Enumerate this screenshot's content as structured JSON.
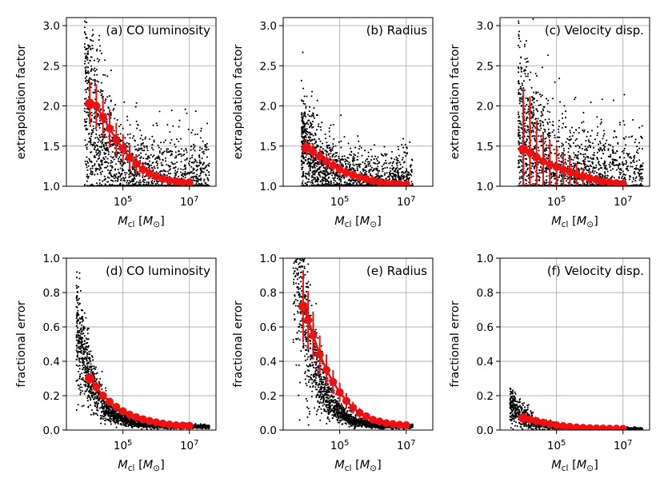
{
  "colors": {
    "scatter": "#000000",
    "binned": "#ee1111",
    "grid": "#b0b0b0"
  },
  "chart_data": [
    {
      "type": "scatter",
      "id": "a",
      "label": "(a) CO luminosity",
      "xlabel": "M_cl [M_⊙]",
      "ylabel": "extrapolation factor",
      "xscale": "log",
      "xlim_log10": [
        3.3,
        7.8
      ],
      "xticks": [
        {
          "pow": 5
        },
        {
          "pow": 7
        }
      ],
      "ylim": [
        1.0,
        3.1
      ],
      "yticks": [
        "1.0",
        "1.5",
        "2.0",
        "2.5",
        "3.0"
      ],
      "grid": true,
      "label_align": "right",
      "scatter_model": {
        "f0": 1.0,
        "A": 1.05,
        "x0": 4.0,
        "k": 0.85,
        "spread": 0.32,
        "n": 2000,
        "xmin": 3.85,
        "xmax": 7.6,
        "min_value": 1.0,
        "seed": 11
      },
      "binned": {
        "log10_mass": [
          4.0,
          4.2,
          4.4,
          4.6,
          4.8,
          5.0,
          5.2,
          5.4,
          5.6,
          5.8,
          6.0,
          6.2,
          6.4,
          6.6,
          6.8,
          7.0
        ],
        "value": [
          2.03,
          2.0,
          1.86,
          1.72,
          1.58,
          1.47,
          1.36,
          1.28,
          1.21,
          1.16,
          1.12,
          1.09,
          1.07,
          1.06,
          1.05,
          1.05
        ],
        "err": [
          0.26,
          0.27,
          0.25,
          0.24,
          0.21,
          0.18,
          0.15,
          0.12,
          0.09,
          0.07,
          0.05,
          0.04,
          0.03,
          0.02,
          0.02,
          0.02
        ]
      }
    },
    {
      "type": "scatter",
      "id": "b",
      "label": "(b) Radius",
      "xlabel": "M_cl [M_⊙]",
      "ylabel": "extrapolation factor",
      "xscale": "log",
      "xlim_log10": [
        3.3,
        7.8
      ],
      "xticks": [
        {
          "pow": 5
        },
        {
          "pow": 7
        }
      ],
      "ylim": [
        1.0,
        3.1
      ],
      "yticks": [
        "1.0",
        "1.5",
        "2.0",
        "2.5",
        "3.0"
      ],
      "grid": true,
      "label_align": "right",
      "scatter_model": {
        "f0": 1.0,
        "A": 0.5,
        "x0": 4.0,
        "k": 0.8,
        "spread": 0.2,
        "n": 2000,
        "xmin": 3.85,
        "xmax": 7.2,
        "min_value": 1.0,
        "seed": 23
      },
      "binned": {
        "log10_mass": [
          4.0,
          4.2,
          4.4,
          4.6,
          4.8,
          5.0,
          5.2,
          5.4,
          5.6,
          5.8,
          6.0,
          6.2,
          6.4,
          6.6,
          6.8,
          7.0
        ],
        "value": [
          1.48,
          1.43,
          1.37,
          1.31,
          1.26,
          1.21,
          1.17,
          1.14,
          1.11,
          1.09,
          1.07,
          1.05,
          1.04,
          1.03,
          1.03,
          1.02
        ],
        "err": [
          0.1,
          0.1,
          0.1,
          0.09,
          0.08,
          0.07,
          0.06,
          0.05,
          0.04,
          0.03,
          0.02,
          0.02,
          0.02,
          0.01,
          0.01,
          0.01
        ]
      }
    },
    {
      "type": "scatter",
      "id": "c",
      "label": "(c) Velocity disp.",
      "xlabel": "M_cl [M_⊙]",
      "ylabel": "extrapolation factor",
      "xscale": "log",
      "xlim_log10": [
        3.3,
        7.8
      ],
      "xticks": [
        {
          "pow": 5
        },
        {
          "pow": 7
        }
      ],
      "ylim": [
        1.0,
        3.1
      ],
      "yticks": [
        "1.0",
        "1.5",
        "2.0",
        "2.5",
        "3.0"
      ],
      "grid": true,
      "label_align": "right",
      "scatter_model": {
        "f0": 1.0,
        "A": 0.7,
        "x0": 4.0,
        "k": 0.7,
        "spread": 0.35,
        "n": 2000,
        "xmin": 3.85,
        "xmax": 7.6,
        "min_value": 1.0,
        "seed": 37
      },
      "binned": {
        "log10_mass": [
          4.0,
          4.2,
          4.4,
          4.6,
          4.8,
          5.0,
          5.2,
          5.4,
          5.6,
          5.8,
          6.0,
          6.2,
          6.4,
          6.6,
          6.8,
          7.0
        ],
        "value": [
          1.46,
          1.42,
          1.36,
          1.31,
          1.27,
          1.24,
          1.21,
          1.18,
          1.15,
          1.12,
          1.1,
          1.08,
          1.06,
          1.05,
          1.04,
          1.03
        ],
        "err": [
          0.75,
          0.7,
          0.45,
          0.35,
          0.3,
          0.25,
          0.2,
          0.17,
          0.14,
          0.11,
          0.08,
          0.06,
          0.05,
          0.04,
          0.03,
          0.02
        ]
      }
    },
    {
      "type": "scatter",
      "id": "d",
      "label": "(d) CO luminosity",
      "xlabel": "M_cl [M_⊙]",
      "ylabel": "fractional error",
      "xscale": "log",
      "xlim_log10": [
        3.3,
        7.8
      ],
      "xticks": [
        {
          "pow": 5
        },
        {
          "pow": 7
        }
      ],
      "ylim": [
        0.0,
        1.0
      ],
      "yticks": [
        "0.0",
        "0.2",
        "0.4",
        "0.6",
        "0.8",
        "1.0"
      ],
      "grid": true,
      "label_align": "right",
      "scatter_model": {
        "f0": 0.02,
        "A": 0.29,
        "x0": 4.0,
        "k": 0.85,
        "spread": 0.3,
        "n": 2000,
        "xmin": 3.6,
        "xmax": 7.6,
        "min_value": 0.005,
        "seed": 51
      },
      "binned": {
        "log10_mass": [
          4.0,
          4.2,
          4.4,
          4.6,
          4.8,
          5.0,
          5.2,
          5.4,
          5.6,
          5.8,
          6.0,
          6.2,
          6.4,
          6.6,
          6.8,
          7.0
        ],
        "value": [
          0.3,
          0.25,
          0.2,
          0.165,
          0.135,
          0.11,
          0.09,
          0.075,
          0.063,
          0.053,
          0.045,
          0.038,
          0.032,
          0.028,
          0.026,
          0.025
        ],
        "err": [
          0.03,
          0.03,
          0.025,
          0.02,
          0.018,
          0.015,
          0.013,
          0.011,
          0.009,
          0.008,
          0.007,
          0.006,
          0.005,
          0.005,
          0.004,
          0.004
        ]
      }
    },
    {
      "type": "scatter",
      "id": "e",
      "label": "(e) Radius",
      "xlabel": "M_cl [M_⊙]",
      "ylabel": "fractional error",
      "xscale": "log",
      "xlim_log10": [
        3.3,
        7.8
      ],
      "xticks": [
        {
          "pow": 5
        },
        {
          "pow": 7
        }
      ],
      "ylim": [
        0.0,
        1.0
      ],
      "yticks": [
        "0.0",
        "0.2",
        "0.4",
        "0.6",
        "0.8",
        "1.0"
      ],
      "grid": true,
      "label_align": "right",
      "scatter_model": {
        "f0": 0.02,
        "A": 0.72,
        "x0": 3.9,
        "k": 0.85,
        "spread": 0.3,
        "n": 2000,
        "xmin": 3.6,
        "xmax": 7.2,
        "min_value": 0.005,
        "seed": 67
      },
      "binned": {
        "log10_mass": [
          3.9,
          4.05,
          4.2,
          4.4,
          4.6,
          4.8,
          5.0,
          5.2,
          5.4,
          5.6,
          5.8,
          6.0,
          6.2,
          6.4,
          6.6,
          6.8,
          7.0
        ],
        "value": [
          0.72,
          0.64,
          0.55,
          0.44,
          0.35,
          0.28,
          0.22,
          0.17,
          0.13,
          0.1,
          0.08,
          0.06,
          0.05,
          0.04,
          0.035,
          0.03,
          0.028
        ],
        "err": [
          0.21,
          0.17,
          0.14,
          0.11,
          0.09,
          0.07,
          0.055,
          0.045,
          0.035,
          0.028,
          0.02,
          0.015,
          0.012,
          0.01,
          0.008,
          0.007,
          0.006
        ]
      }
    },
    {
      "type": "scatter",
      "id": "f",
      "label": "(f) Velocity disp.",
      "xlabel": "M_cl [M_⊙]",
      "ylabel": "fractional error",
      "xscale": "log",
      "xlim_log10": [
        3.3,
        7.8
      ],
      "xticks": [
        {
          "pow": 5
        },
        {
          "pow": 7
        }
      ],
      "ylim": [
        0.0,
        1.0
      ],
      "yticks": [
        "0.0",
        "0.2",
        "0.4",
        "0.6",
        "0.8",
        "1.0"
      ],
      "grid": true,
      "label_align": "right",
      "scatter_model": {
        "f0": 0.008,
        "A": 0.07,
        "x0": 4.0,
        "k": 0.8,
        "spread": 0.45,
        "n": 1400,
        "xmin": 3.6,
        "xmax": 7.6,
        "min_value": 0.003,
        "seed": 83
      },
      "binned": {
        "log10_mass": [
          4.0,
          4.2,
          4.4,
          4.6,
          4.8,
          5.0,
          5.2,
          5.4,
          5.6,
          5.8,
          6.0,
          6.2,
          6.4,
          6.6,
          6.8,
          7.0
        ],
        "value": [
          0.07,
          0.062,
          0.052,
          0.043,
          0.035,
          0.028,
          0.023,
          0.019,
          0.015,
          0.013,
          0.011,
          0.01,
          0.009,
          0.008,
          0.008,
          0.007
        ],
        "err": [
          0.02,
          0.018,
          0.015,
          0.012,
          0.01,
          0.008,
          0.006,
          0.005,
          0.004,
          0.003,
          0.003,
          0.002,
          0.002,
          0.002,
          0.002,
          0.002
        ]
      }
    }
  ]
}
